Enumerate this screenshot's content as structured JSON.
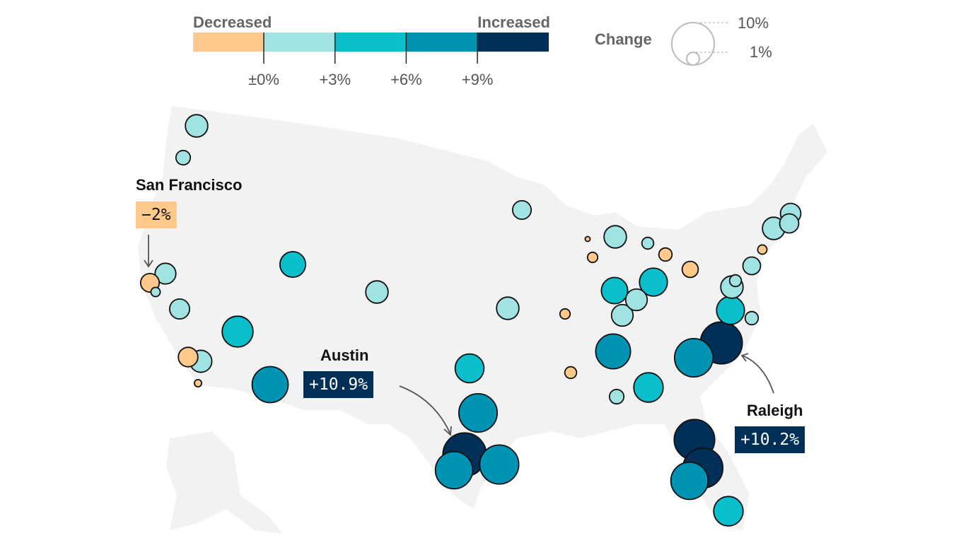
{
  "legend": {
    "decreased_label": "Decreased",
    "increased_label": "Increased",
    "ticks": [
      "±0%",
      "+3%",
      "+6%",
      "+9%"
    ],
    "colors": [
      "#fec98a",
      "#a1e3e3",
      "#0abfcc",
      "#0093b4",
      "#003057"
    ],
    "size_title": "Change",
    "size_large": "10%",
    "size_small": "1%"
  },
  "callouts": {
    "sf": {
      "city": "San Francisco",
      "value": "−2%"
    },
    "austin": {
      "city": "Austin",
      "value": "+10.9%"
    },
    "raleigh": {
      "city": "Raleigh",
      "value": "+10.2%"
    }
  },
  "map_color": "#f2f2f2",
  "bubbles": [
    {
      "change": 2.9
    },
    {
      "change": 1.2
    },
    {
      "change": 2.5
    },
    {
      "change": -2
    },
    {
      "change": 0.5
    },
    {
      "change": 2.3
    },
    {
      "change": 5.5
    },
    {
      "change": -2.2
    },
    {
      "change": 2.8
    },
    {
      "change": -0.3
    },
    {
      "change": 7.5
    },
    {
      "change": 3.8
    },
    {
      "change": 2.9
    },
    {
      "change": 2
    },
    {
      "change": 2.9
    },
    {
      "change": 4.8
    },
    {
      "change": 8.5
    },
    {
      "change": 10.9
    },
    {
      "change": 8
    },
    {
      "change": 8.8
    },
    {
      "change": -0.6
    },
    {
      "change": -0.8
    },
    {
      "change": -0.1
    },
    {
      "change": -0.6
    },
    {
      "change": 2.9
    },
    {
      "change": 0.8
    },
    {
      "change": -1
    },
    {
      "change": -1.5
    },
    {
      "change": 4
    },
    {
      "change": 2.7
    },
    {
      "change": 2.7
    },
    {
      "change": 4.5
    },
    {
      "change": 7
    },
    {
      "change": 1.2
    },
    {
      "change": 5
    },
    {
      "change": 4.5
    },
    {
      "change": 2.9
    },
    {
      "change": 0.8
    },
    {
      "change": 1.8
    },
    {
      "change": 1
    },
    {
      "change": -0.5
    },
    {
      "change": 2.9
    },
    {
      "change": 2.4
    },
    {
      "change": 2.1
    },
    {
      "change": 10.2
    },
    {
      "change": 8.5
    },
    {
      "change": 9.5
    },
    {
      "change": 9.2
    },
    {
      "change": 8
    },
    {
      "change": 5
    }
  ]
}
